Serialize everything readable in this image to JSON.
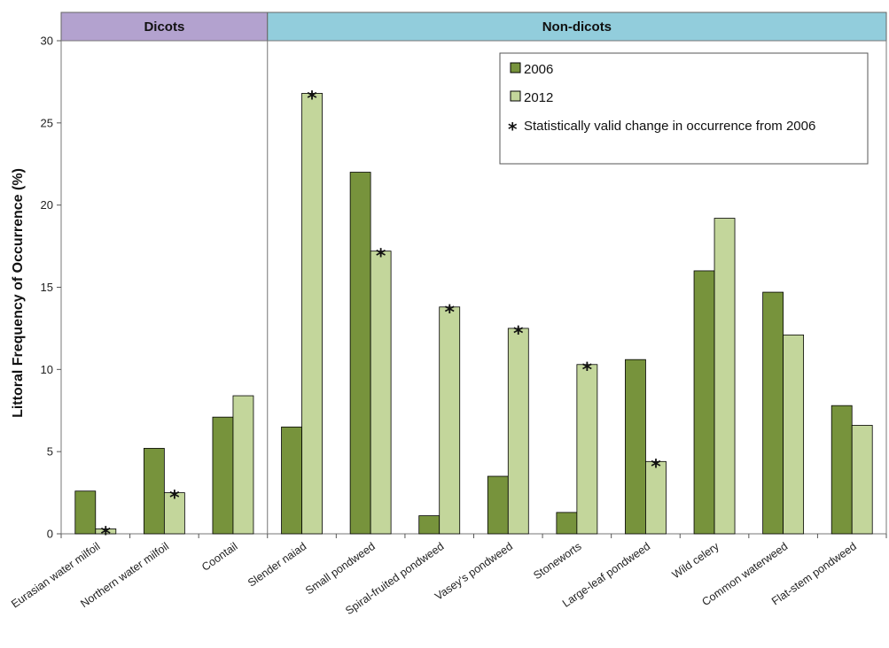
{
  "chart_data": {
    "type": "bar",
    "ylabel": "Littoral Frequency of Occurrence (%)",
    "ylim": [
      0,
      30
    ],
    "yticks": [
      0,
      5,
      10,
      15,
      20,
      25,
      30
    ],
    "grid": false,
    "legend_position": "top-right",
    "categories": [
      "Eurasian water milfoil",
      "Northern water milfoil",
      "Coontail",
      "Slender naiad",
      "Small pondweed",
      "Spiral-fruited pondweed",
      "Vasey's pondweed",
      "Stoneworts",
      "Large-leaf pondweed",
      "Wild celery",
      "Common waterweed",
      "Flat-stem pondweed"
    ],
    "groups": [
      {
        "label": "Dicots",
        "start": 0,
        "end": 2,
        "color": "#b3a2cf"
      },
      {
        "label": "Non-dicots",
        "start": 3,
        "end": 11,
        "color": "#92cddc"
      }
    ],
    "series": [
      {
        "name": "2006",
        "color": "#77933c",
        "values": [
          2.6,
          5.2,
          7.1,
          6.5,
          22.0,
          1.1,
          3.5,
          1.3,
          10.6,
          16.0,
          14.7,
          7.8
        ]
      },
      {
        "name": "2012",
        "color": "#c3d69b",
        "values": [
          0.3,
          2.5,
          8.4,
          26.8,
          17.2,
          13.8,
          12.5,
          10.3,
          4.4,
          19.2,
          12.1,
          6.6
        ]
      }
    ],
    "significant_2012": [
      true,
      true,
      false,
      true,
      true,
      true,
      true,
      true,
      true,
      false,
      false,
      false
    ],
    "significance_marker": "*",
    "significance_note": "Statistically valid change in occurrence from 2006"
  }
}
